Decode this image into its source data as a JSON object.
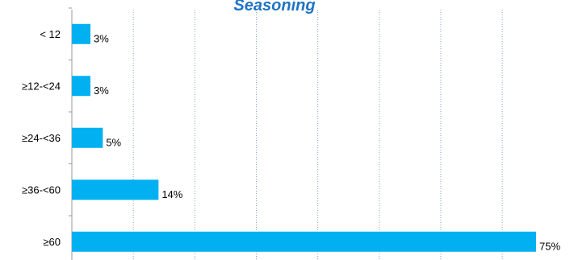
{
  "chart_data": {
    "type": "bar",
    "orientation": "horizontal",
    "title": "Seasoning",
    "categories": [
      "< 12",
      "≥12-<24",
      "≥24-<36",
      "≥36-<60",
      "≥60"
    ],
    "values": [
      3,
      3,
      5,
      14,
      75
    ],
    "value_labels": [
      "3%",
      "3%",
      "5%",
      "14%",
      "75%"
    ],
    "xlim": [
      0,
      75
    ],
    "grid": "vertical",
    "legend": "none",
    "bar_color": "#00b0f0"
  }
}
